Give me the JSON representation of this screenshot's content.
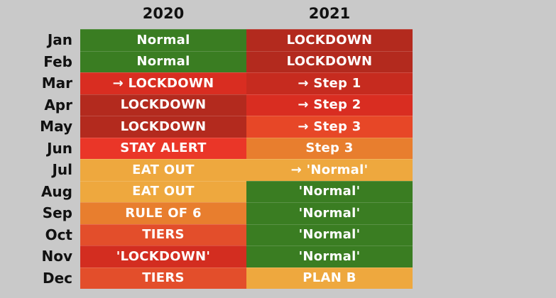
{
  "chart_data": {
    "type": "table",
    "title": "",
    "column_headers": [
      "2020",
      "2021"
    ],
    "row_labels": [
      "Jan",
      "Feb",
      "Mar",
      "Apr",
      "May",
      "Jun",
      "Jul",
      "Aug",
      "Sep",
      "Oct",
      "Nov",
      "Dec"
    ],
    "background_color": "#c9c9c9",
    "cell_text_color": "#ffffff",
    "header_text_color": "#111111",
    "palette": {
      "green": "#3a7d22",
      "dark_red": "#b32a1e",
      "red": "#d92d21",
      "mid_red": "#c62b1f",
      "bright_red": "#ea3628",
      "red_orange": "#e34e2b",
      "orange_red": "#e74727",
      "orange": "#e87e2e",
      "amber": "#eea83e"
    },
    "rows": [
      {
        "month": "Jan",
        "y2020": {
          "label": "Normal",
          "color": "#3a7d22"
        },
        "y2021": {
          "label": "LOCKDOWN",
          "color": "#b32a1e"
        }
      },
      {
        "month": "Feb",
        "y2020": {
          "label": "Normal",
          "color": "#3a7d22"
        },
        "y2021": {
          "label": "LOCKDOWN",
          "color": "#b32a1e"
        }
      },
      {
        "month": "Mar",
        "y2020": {
          "label": "→ LOCKDOWN",
          "color": "#d92d21"
        },
        "y2021": {
          "label": "→ Step 1",
          "color": "#c62b1f"
        }
      },
      {
        "month": "Apr",
        "y2020": {
          "label": "LOCKDOWN",
          "color": "#b32a1e"
        },
        "y2021": {
          "label": "→ Step 2",
          "color": "#d92d21"
        }
      },
      {
        "month": "May",
        "y2020": {
          "label": "LOCKDOWN",
          "color": "#b32a1e"
        },
        "y2021": {
          "label": "→ Step 3",
          "color": "#e74727"
        }
      },
      {
        "month": "Jun",
        "y2020": {
          "label": "STAY ALERT",
          "color": "#ea3628"
        },
        "y2021": {
          "label": "Step 3",
          "color": "#e87e2e"
        }
      },
      {
        "month": "Jul",
        "y2020": {
          "label": "EAT OUT",
          "color": "#eea83e"
        },
        "y2021": {
          "label": "→ 'Normal'",
          "color": "#eea83e"
        }
      },
      {
        "month": "Aug",
        "y2020": {
          "label": "EAT OUT",
          "color": "#eea83e"
        },
        "y2021": {
          "label": "'Normal'",
          "color": "#3a7d22"
        }
      },
      {
        "month": "Sep",
        "y2020": {
          "label": "RULE OF 6",
          "color": "#e87e2e"
        },
        "y2021": {
          "label": "'Normal'",
          "color": "#3a7d22"
        }
      },
      {
        "month": "Oct",
        "y2020": {
          "label": "TIERS",
          "color": "#e34e2b"
        },
        "y2021": {
          "label": "'Normal'",
          "color": "#3a7d22"
        }
      },
      {
        "month": "Nov",
        "y2020": {
          "label": "'LOCKDOWN'",
          "color": "#d32d20"
        },
        "y2021": {
          "label": "'Normal'",
          "color": "#3a7d22"
        }
      },
      {
        "month": "Dec",
        "y2020": {
          "label": "TIERS",
          "color": "#e34e2b"
        },
        "y2021": {
          "label": "PLAN B",
          "color": "#eea83e"
        }
      }
    ]
  }
}
